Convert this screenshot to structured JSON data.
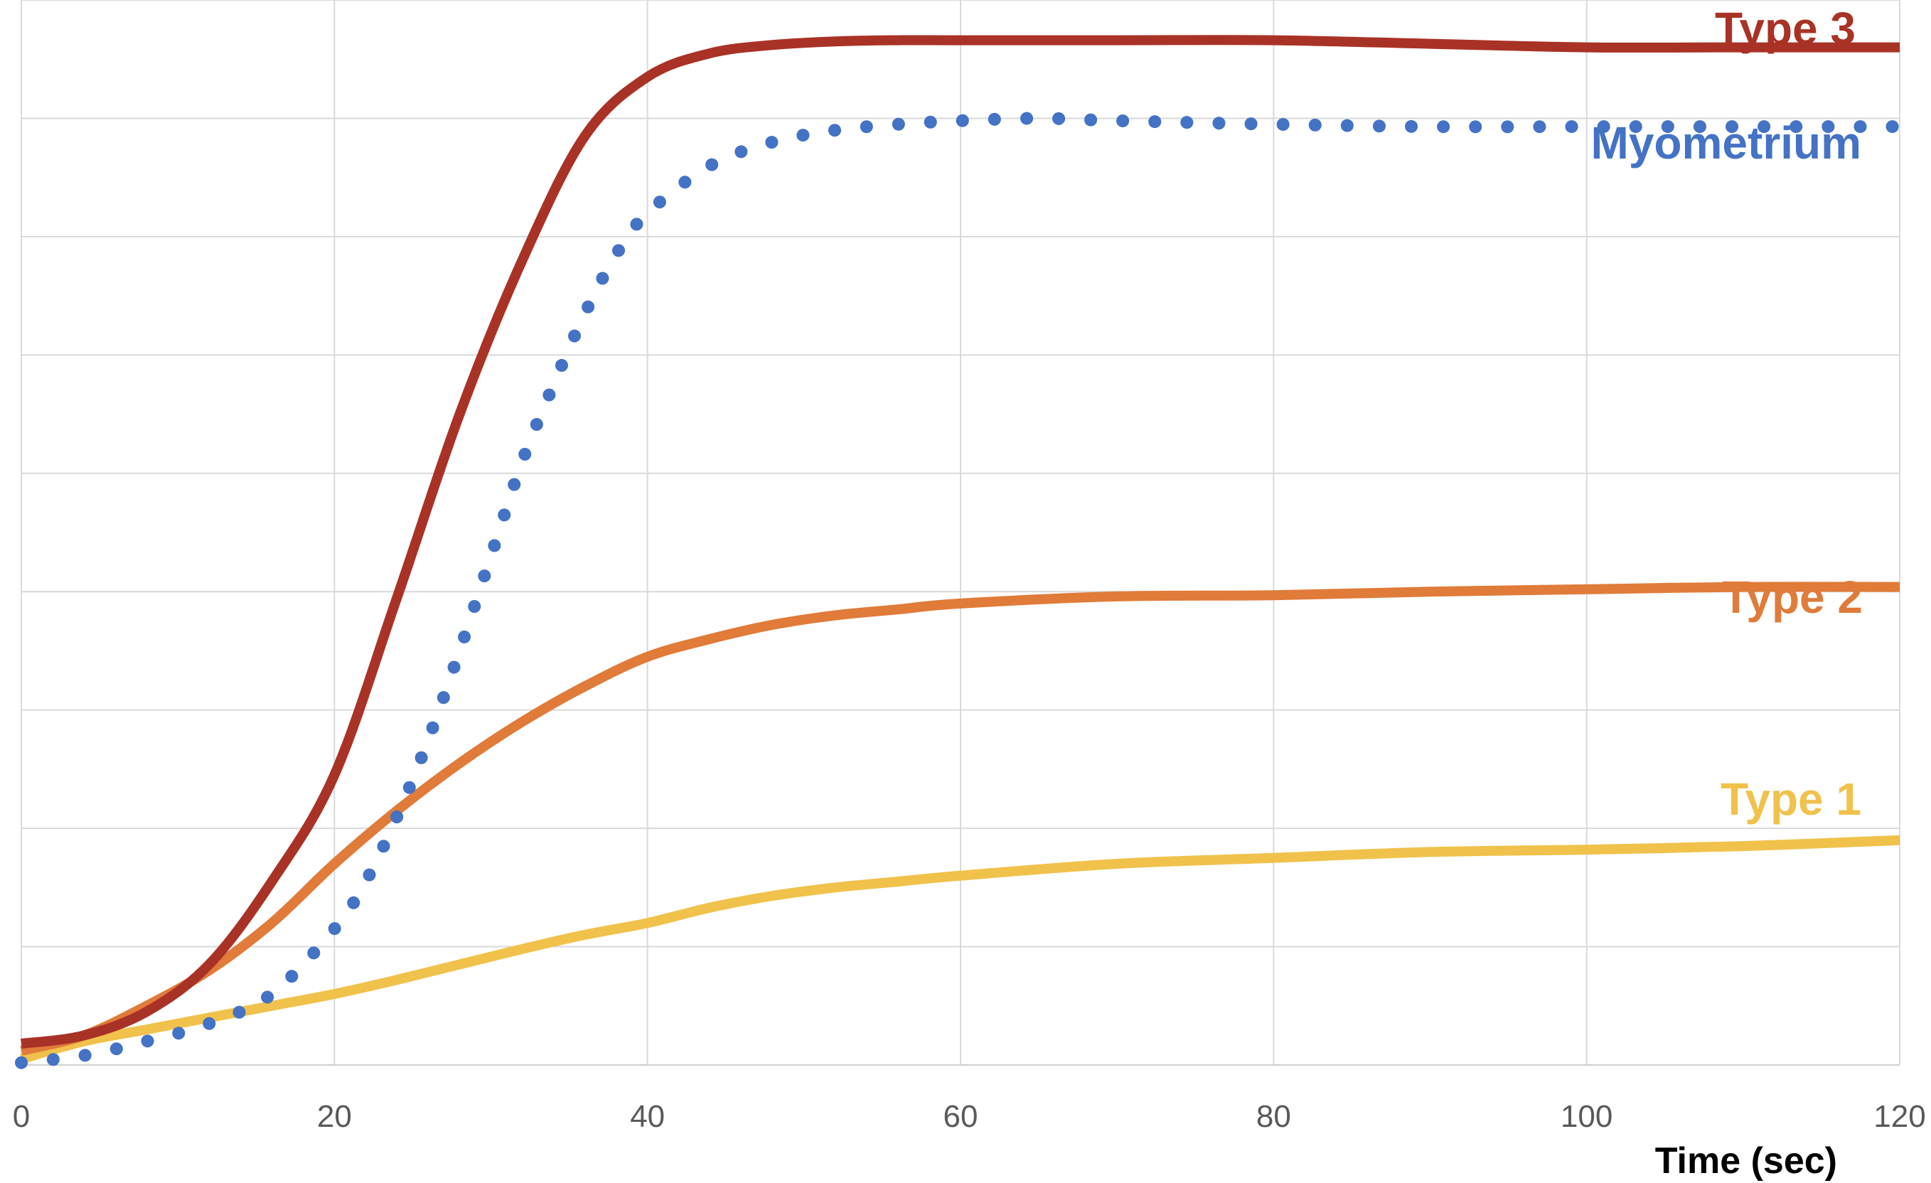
{
  "chart_data": {
    "type": "line",
    "title": "",
    "xlabel": "Time (sec)",
    "ylabel": "",
    "xlim": [
      0,
      120
    ],
    "ylim": [
      0,
      9
    ],
    "x_ticks": [
      "0",
      "20",
      "40",
      "60",
      "80",
      "100",
      "120"
    ],
    "grid": true,
    "legend": "none; series labels printed next to line ends",
    "series": [
      {
        "name": "Type 3",
        "color": "#a93226",
        "style": "solid",
        "x": [
          0,
          4,
          8,
          12,
          16,
          20,
          24,
          28,
          32,
          36,
          40,
          44,
          48,
          52,
          56,
          60,
          70,
          80,
          90,
          100,
          110,
          120
        ],
        "y": [
          0.18,
          0.25,
          0.45,
          0.85,
          1.55,
          2.45,
          3.95,
          5.5,
          6.8,
          7.85,
          8.35,
          8.55,
          8.62,
          8.65,
          8.66,
          8.66,
          8.66,
          8.66,
          8.63,
          8.6,
          8.6,
          8.6
        ]
      },
      {
        "name": "Myometrium",
        "color": "#4472c4",
        "style": "dotted",
        "x": [
          0,
          4,
          8,
          12,
          16,
          20,
          22,
          24,
          26,
          28,
          30,
          32,
          34,
          36,
          38,
          40,
          44,
          48,
          52,
          56,
          60,
          65,
          70,
          80,
          90,
          100,
          110,
          120
        ],
        "y": [
          0.02,
          0.08,
          0.2,
          0.35,
          0.6,
          1.15,
          1.55,
          2.1,
          2.75,
          3.5,
          4.3,
          5.1,
          5.75,
          6.35,
          6.85,
          7.2,
          7.6,
          7.8,
          7.9,
          7.95,
          7.98,
          8.0,
          7.98,
          7.95,
          7.93,
          7.93,
          7.93,
          7.93
        ]
      },
      {
        "name": "Type 2",
        "color": "#e07b39",
        "style": "solid",
        "x": [
          0,
          4,
          8,
          12,
          16,
          20,
          24,
          28,
          32,
          36,
          40,
          44,
          48,
          52,
          56,
          60,
          70,
          80,
          90,
          100,
          110,
          120
        ],
        "y": [
          0.12,
          0.25,
          0.5,
          0.8,
          1.2,
          1.7,
          2.15,
          2.55,
          2.9,
          3.2,
          3.45,
          3.6,
          3.72,
          3.8,
          3.85,
          3.9,
          3.96,
          3.97,
          4.0,
          4.02,
          4.04,
          4.04
        ]
      },
      {
        "name": "Type 1",
        "color": "#f0c24b",
        "style": "solid",
        "x": [
          0,
          4,
          8,
          12,
          16,
          20,
          24,
          28,
          32,
          36,
          40,
          44,
          48,
          52,
          56,
          60,
          70,
          80,
          90,
          100,
          110,
          120
        ],
        "y": [
          0.05,
          0.2,
          0.3,
          0.4,
          0.5,
          0.6,
          0.72,
          0.85,
          0.98,
          1.1,
          1.2,
          1.33,
          1.43,
          1.5,
          1.55,
          1.6,
          1.7,
          1.75,
          1.8,
          1.82,
          1.85,
          1.9
        ]
      }
    ]
  }
}
